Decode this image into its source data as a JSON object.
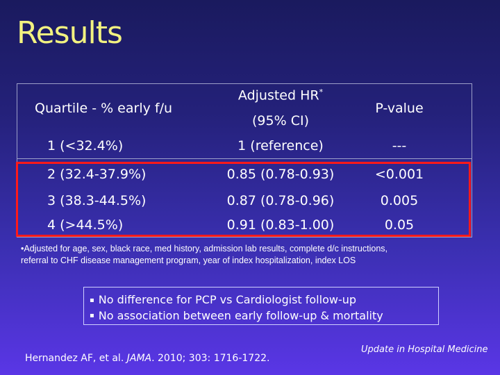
{
  "slide": {
    "title": "Results"
  },
  "table": {
    "headers": {
      "quartile": "Quartile - % early f/u",
      "hr_line1": "Adjusted HR",
      "hr_sup": "*",
      "hr_line2": "(95% CI)",
      "pvalue": "P-value"
    },
    "rows": [
      {
        "quartile": "1 (<32.4%)",
        "hr": "1 (reference)",
        "p": "---"
      },
      {
        "quartile": "2 (32.4-37.9%)",
        "hr": "0.85 (0.78-0.93)",
        "p": "<0.001"
      },
      {
        "quartile": "3 (38.3-44.5%)",
        "hr": "0.87 (0.78-0.96)",
        "p": "0.005"
      },
      {
        "quartile": "4 (>44.5%)",
        "hr": "0.91 (0.83-1.00)",
        "p": "0.05"
      }
    ]
  },
  "footnote": {
    "line1": "•Adjusted for age, sex, black race, med history, admission lab results, complete d/c instructions,",
    "line2": "referral to CHF disease management program, year of index hospitalization, index LOS"
  },
  "bullets": [
    "No difference for PCP vs Cardiologist follow-up",
    "No association between early follow-up & mortality"
  ],
  "citation": {
    "authors": "Hernandez AF, et al. ",
    "journal": "JAMA",
    "details": ". 2010; 303: 1716-1722."
  },
  "footer": {
    "brand": "Update in Hospital Medicine"
  },
  "colors": {
    "title": "#f2f280",
    "highlight_box": "#ff1a1a",
    "background_top": "#1a1a5e",
    "background_bottom": "#5a36e6"
  }
}
